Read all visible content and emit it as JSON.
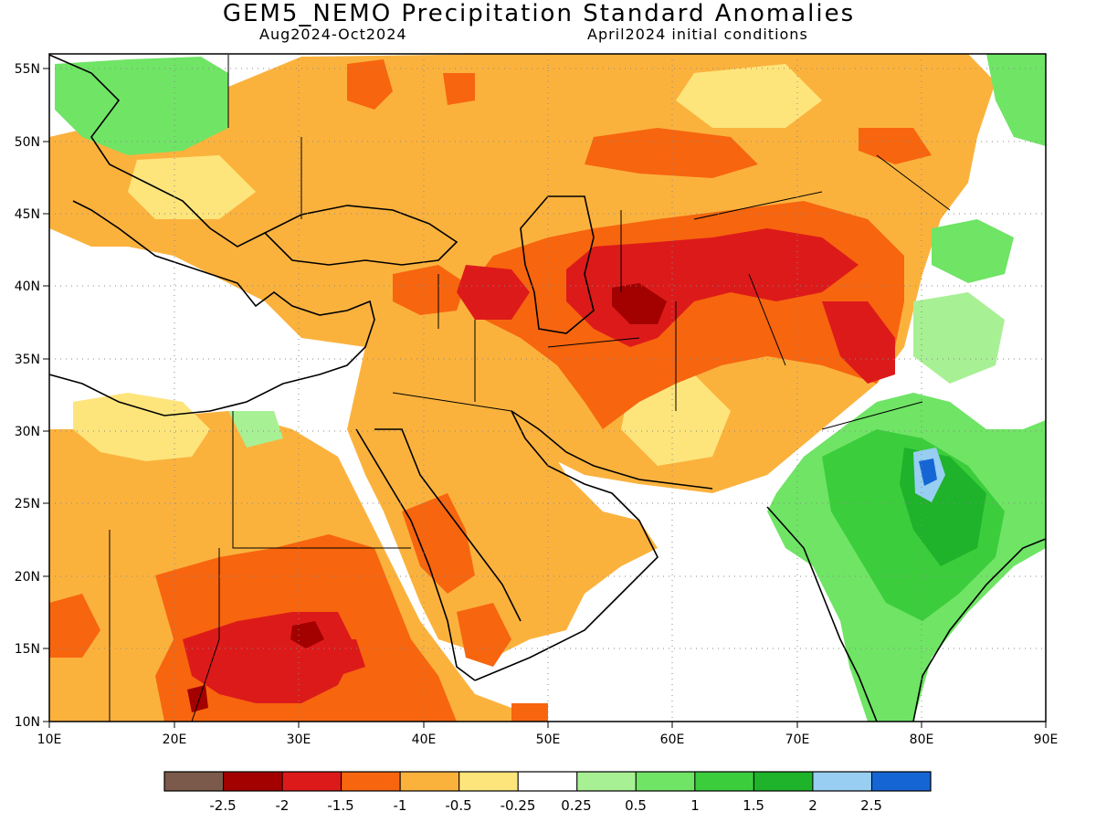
{
  "header": {
    "title": "GEM5_NEMO Precipitation Standard Anomalies",
    "period": "Aug2024-Oct2024",
    "init": "April2024 initial conditions"
  },
  "map": {
    "lon_range": [
      10,
      90
    ],
    "lat_range": [
      10,
      56
    ],
    "grid": "dotted",
    "lon_ticks": [
      "10E",
      "20E",
      "30E",
      "40E",
      "50E",
      "60E",
      "70E",
      "80E",
      "90E"
    ],
    "lat_ticks": [
      "55N",
      "50N",
      "45N",
      "40N",
      "35N",
      "30N",
      "25N",
      "20N",
      "15N",
      "10N"
    ]
  },
  "legend": {
    "colors": [
      "#7b5a4b",
      "#a30000",
      "#dd1a1a",
      "#f7650f",
      "#fbb23d",
      "#fde57c",
      "#ffffff",
      "#a8f094",
      "#6fe465",
      "#3ccd3c",
      "#1eb32a",
      "#97cef2",
      "#1566d4"
    ],
    "labels": [
      "-2.5",
      "-2",
      "-1.5",
      "-1",
      "-0.5",
      "-0.25",
      "0.25",
      "0.5",
      "1",
      "1.5",
      "2",
      "2.5"
    ]
  }
}
